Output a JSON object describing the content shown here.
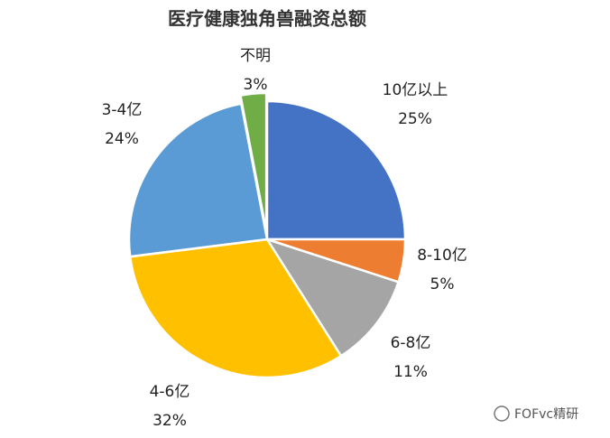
{
  "chart_data": {
    "type": "pie",
    "title": "医疗健康独角兽融资总额",
    "categories": [
      "10亿以上",
      "8-10亿",
      "6-8亿",
      "4-6亿",
      "3-4亿",
      "不明"
    ],
    "values": [
      25,
      5,
      11,
      32,
      24,
      3
    ],
    "value_labels": [
      "25%",
      "5%",
      "11%",
      "32%",
      "24%",
      "3%"
    ],
    "colors": [
      "#4472c4",
      "#ed7d31",
      "#a5a5a5",
      "#ffc000",
      "#5b9bd5",
      "#70ad47"
    ],
    "exploded": [
      5
    ]
  },
  "watermark": "FOFvc精研"
}
